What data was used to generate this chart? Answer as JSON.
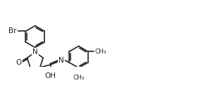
{
  "bg_color": "#ffffff",
  "line_color": "#222222",
  "line_width": 1.2,
  "font_size": 7.0,
  "xlim": [
    0,
    10.2
  ],
  "ylim": [
    -0.5,
    1.6
  ]
}
